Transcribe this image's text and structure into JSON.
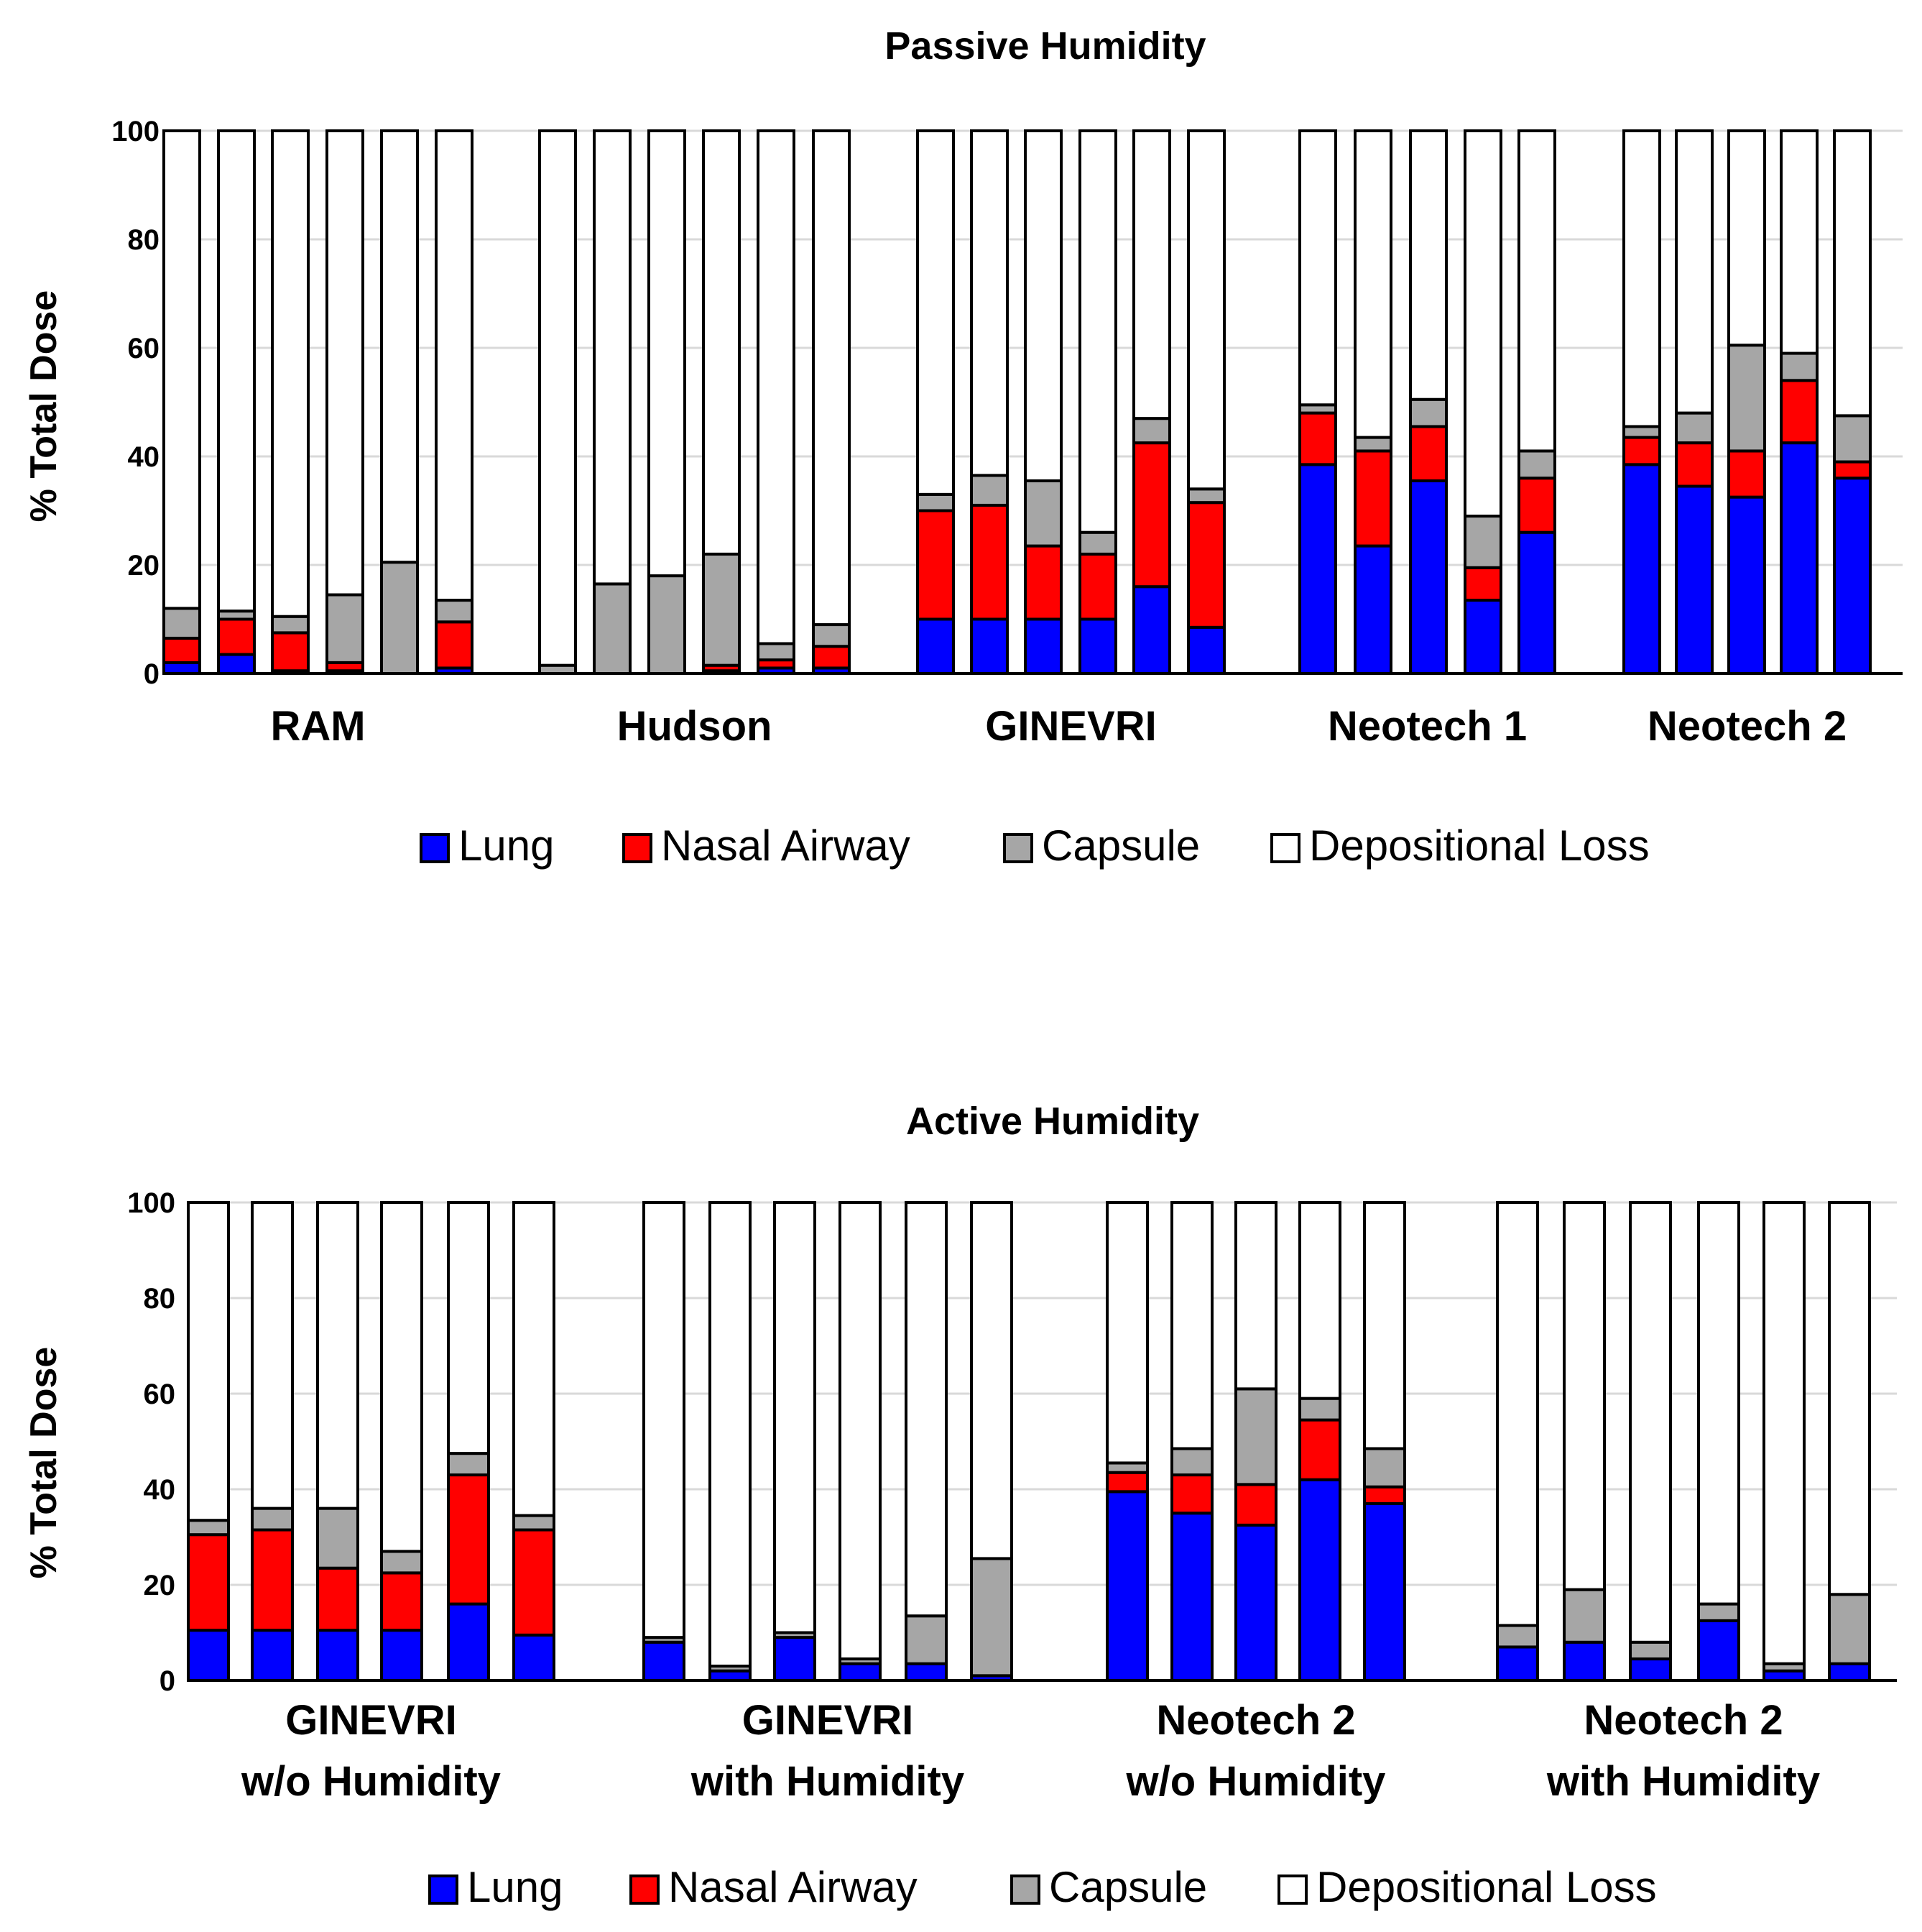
{
  "series_colors": {
    "Lung": "#0000ff",
    "Nasal Airway": "#ff0000",
    "Capsule": "#a6a6a6",
    "Depositional Loss": "#ffffff"
  },
  "chart_data": [
    {
      "type": "bar",
      "stacked": true,
      "title": "Passive Humidity",
      "ylabel": "% Total Dose",
      "ylim": [
        0,
        100
      ],
      "yticks": [
        0,
        20,
        40,
        60,
        80,
        100
      ],
      "legend": [
        "Lung",
        "Nasal Airway",
        "Capsule",
        "Depositional Loss"
      ],
      "groups": [
        {
          "label": [
            "RAM"
          ],
          "bars": [
            {
              "Lung": 2,
              "Nasal Airway": 4.5,
              "Capsule": 5.5
            },
            {
              "Lung": 3.5,
              "Nasal Airway": 6.5,
              "Capsule": 1.5
            },
            {
              "Lung": 0.5,
              "Nasal Airway": 7,
              "Capsule": 3
            },
            {
              "Lung": 0.5,
              "Nasal Airway": 1.5,
              "Capsule": 12.5
            },
            {
              "Lung": 0,
              "Nasal Airway": 0,
              "Capsule": 20.5
            },
            {
              "Lung": 1,
              "Nasal Airway": 8.5,
              "Capsule": 4
            }
          ]
        },
        {
          "label": [
            "Hudson"
          ],
          "bars": [
            {
              "Lung": 0,
              "Nasal Airway": 0,
              "Capsule": 1.5
            },
            {
              "Lung": 0,
              "Nasal Airway": 0,
              "Capsule": 16.5
            },
            {
              "Lung": 0,
              "Nasal Airway": 0,
              "Capsule": 18
            },
            {
              "Lung": 0.5,
              "Nasal Airway": 1,
              "Capsule": 20.5
            },
            {
              "Lung": 1,
              "Nasal Airway": 1.5,
              "Capsule": 3
            },
            {
              "Lung": 1,
              "Nasal Airway": 4,
              "Capsule": 4
            }
          ]
        },
        {
          "label": [
            "GINEVRI"
          ],
          "bars": [
            {
              "Lung": 10,
              "Nasal Airway": 20,
              "Capsule": 3
            },
            {
              "Lung": 10,
              "Nasal Airway": 21,
              "Capsule": 5.5
            },
            {
              "Lung": 10,
              "Nasal Airway": 13.5,
              "Capsule": 12
            },
            {
              "Lung": 10,
              "Nasal Airway": 12,
              "Capsule": 4
            },
            {
              "Lung": 16,
              "Nasal Airway": 26.5,
              "Capsule": 4.5
            },
            {
              "Lung": 8.5,
              "Nasal Airway": 23,
              "Capsule": 2.5
            }
          ]
        },
        {
          "label": [
            "Neotech 1"
          ],
          "bars": [
            {
              "Lung": 38.5,
              "Nasal Airway": 9.5,
              "Capsule": 1.5
            },
            {
              "Lung": 23.5,
              "Nasal Airway": 17.5,
              "Capsule": 2.5
            },
            {
              "Lung": 35.5,
              "Nasal Airway": 10,
              "Capsule": 5
            },
            {
              "Lung": 13.5,
              "Nasal Airway": 6,
              "Capsule": 9.5
            },
            {
              "Lung": 26,
              "Nasal Airway": 10,
              "Capsule": 5
            }
          ]
        },
        {
          "label": [
            "Neotech 2"
          ],
          "bars": [
            {
              "Lung": 38.5,
              "Nasal Airway": 5,
              "Capsule": 2
            },
            {
              "Lung": 34.5,
              "Nasal Airway": 8,
              "Capsule": 5.5
            },
            {
              "Lung": 32.5,
              "Nasal Airway": 8.5,
              "Capsule": 19.5
            },
            {
              "Lung": 42.5,
              "Nasal Airway": 11.5,
              "Capsule": 5
            },
            {
              "Lung": 36,
              "Nasal Airway": 3,
              "Capsule": 8.5
            }
          ]
        }
      ]
    },
    {
      "type": "bar",
      "stacked": true,
      "title": "Active Humidity",
      "ylabel": "% Total Dose",
      "ylim": [
        0,
        100
      ],
      "yticks": [
        0,
        20,
        40,
        60,
        80,
        100
      ],
      "legend": [
        "Lung",
        "Nasal Airway",
        "Capsule",
        "Depositional Loss"
      ],
      "groups": [
        {
          "label": [
            "GINEVRI",
            "w/o Humidity"
          ],
          "bars": [
            {
              "Lung": 10.5,
              "Nasal Airway": 20,
              "Capsule": 3
            },
            {
              "Lung": 10.5,
              "Nasal Airway": 21,
              "Capsule": 4.5
            },
            {
              "Lung": 10.5,
              "Nasal Airway": 13,
              "Capsule": 12.5
            },
            {
              "Lung": 10.5,
              "Nasal Airway": 12,
              "Capsule": 4.5
            },
            {
              "Lung": 16,
              "Nasal Airway": 27,
              "Capsule": 4.5
            },
            {
              "Lung": 9.5,
              "Nasal Airway": 22,
              "Capsule": 3
            }
          ]
        },
        {
          "label": [
            "GINEVRI",
            "with Humidity"
          ],
          "bars": [
            {
              "Lung": 8,
              "Nasal Airway": 0,
              "Capsule": 1
            },
            {
              "Lung": 2,
              "Nasal Airway": 0,
              "Capsule": 1
            },
            {
              "Lung": 9,
              "Nasal Airway": 0,
              "Capsule": 1
            },
            {
              "Lung": 3.5,
              "Nasal Airway": 0,
              "Capsule": 1
            },
            {
              "Lung": 3.5,
              "Nasal Airway": 0,
              "Capsule": 10
            },
            {
              "Lung": 1,
              "Nasal Airway": 0,
              "Capsule": 24.5
            }
          ]
        },
        {
          "label": [
            "Neotech 2",
            "w/o Humidity"
          ],
          "bars": [
            {
              "Lung": 39.5,
              "Nasal Airway": 4,
              "Capsule": 2
            },
            {
              "Lung": 35,
              "Nasal Airway": 8,
              "Capsule": 5.5
            },
            {
              "Lung": 32.5,
              "Nasal Airway": 8.5,
              "Capsule": 20
            },
            {
              "Lung": 42,
              "Nasal Airway": 12.5,
              "Capsule": 4.5
            },
            {
              "Lung": 37,
              "Nasal Airway": 3.5,
              "Capsule": 8
            }
          ]
        },
        {
          "label": [
            "Neotech 2",
            "with Humidity"
          ],
          "bars": [
            {
              "Lung": 7,
              "Nasal Airway": 0,
              "Capsule": 4.5
            },
            {
              "Lung": 8,
              "Nasal Airway": 0,
              "Capsule": 11
            },
            {
              "Lung": 4.5,
              "Nasal Airway": 0,
              "Capsule": 3.5
            },
            {
              "Lung": 12.5,
              "Nasal Airway": 0,
              "Capsule": 3.5
            },
            {
              "Lung": 2,
              "Nasal Airway": 0,
              "Capsule": 1.5
            },
            {
              "Lung": 3.5,
              "Nasal Airway": 0,
              "Capsule": 14.5
            }
          ]
        }
      ]
    }
  ]
}
